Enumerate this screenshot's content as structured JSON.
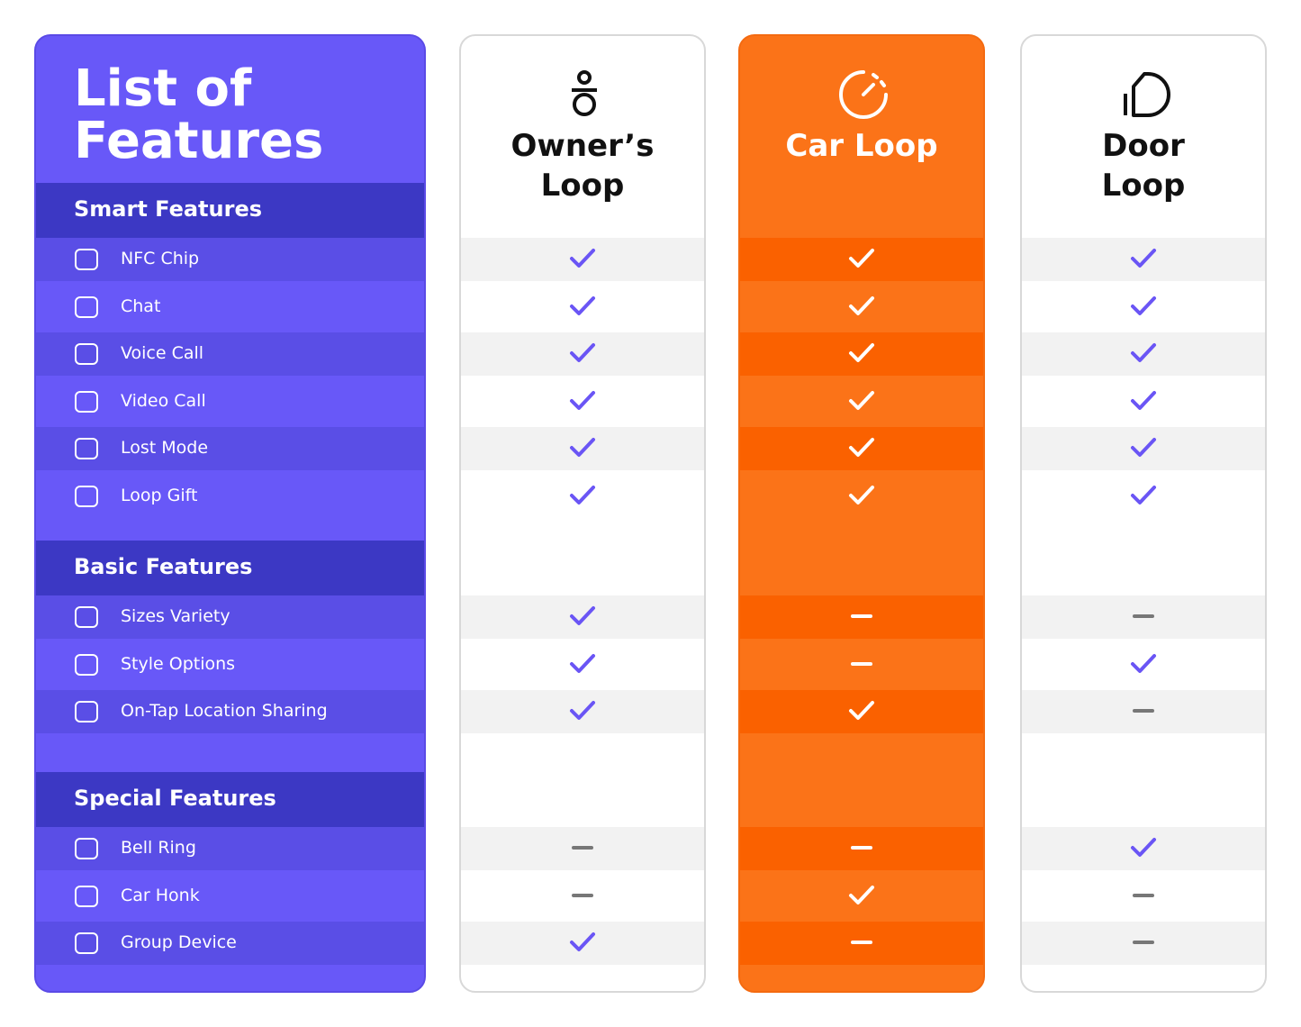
{
  "title": "List of Features",
  "columns": [
    "Owner’s Loop",
    "Car Loop",
    "Door Loop"
  ],
  "sections": [
    {
      "name": "Smart Features",
      "features": [
        {
          "name": "NFC Chip",
          "availability": [
            true,
            true,
            true
          ]
        },
        {
          "name": "Chat",
          "availability": [
            true,
            true,
            true
          ]
        },
        {
          "name": "Voice Call",
          "availability": [
            true,
            true,
            true
          ]
        },
        {
          "name": "Video Call",
          "availability": [
            true,
            true,
            true
          ]
        },
        {
          "name": "Lost Mode",
          "availability": [
            true,
            true,
            true
          ]
        },
        {
          "name": "Loop Gift",
          "availability": [
            true,
            true,
            true
          ]
        }
      ]
    },
    {
      "name": "Basic Features",
      "features": [
        {
          "name": "Sizes Variety",
          "availability": [
            true,
            false,
            false
          ]
        },
        {
          "name": "Style Options",
          "availability": [
            true,
            false,
            true
          ]
        },
        {
          "name": "On-Tap Location Sharing",
          "availability": [
            true,
            true,
            false
          ]
        }
      ]
    },
    {
      "name": "Special Features",
      "features": [
        {
          "name": "Bell Ring",
          "availability": [
            false,
            false,
            true
          ]
        },
        {
          "name": "Car Honk",
          "availability": [
            false,
            true,
            false
          ]
        },
        {
          "name": "Group Device",
          "availability": [
            true,
            false,
            false
          ]
        }
      ]
    }
  ]
}
